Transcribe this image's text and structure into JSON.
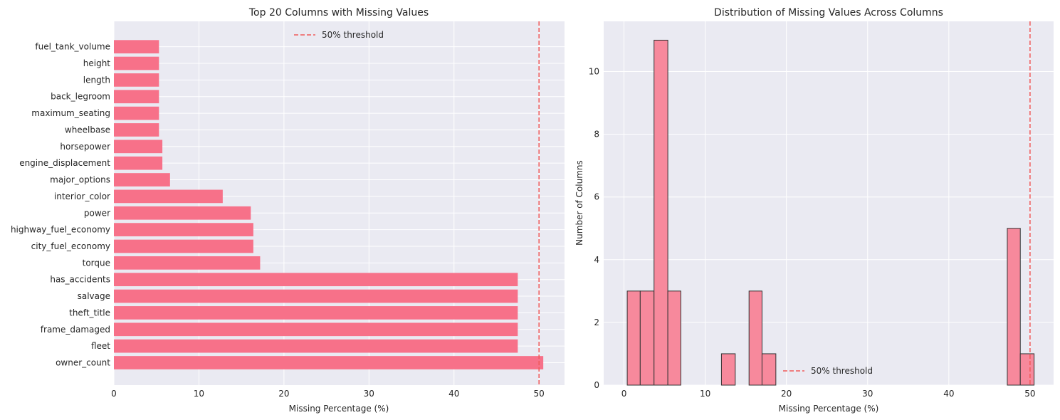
{
  "chart_data": [
    {
      "type": "bar",
      "orientation": "horizontal",
      "title": "Top 20 Columns with Missing Values",
      "xlabel": "Missing Percentage (%)",
      "ylabel": "",
      "xlim": [
        0,
        53
      ],
      "xticks": [
        "0",
        "10",
        "20",
        "30",
        "40",
        "50"
      ],
      "categories": [
        "owner_count",
        "fleet",
        "frame_damaged",
        "theft_title",
        "salvage",
        "has_accidents",
        "torque",
        "city_fuel_economy",
        "highway_fuel_economy",
        "power",
        "interior_color",
        "major_options",
        "engine_displacement",
        "horsepower",
        "wheelbase",
        "maximum_seating",
        "back_legroom",
        "length",
        "height",
        "fuel_tank_volume"
      ],
      "values": [
        50.5,
        47.5,
        47.5,
        47.5,
        47.5,
        47.5,
        17.2,
        16.4,
        16.4,
        16.1,
        12.8,
        6.6,
        5.7,
        5.7,
        5.3,
        5.3,
        5.3,
        5.3,
        5.3,
        5.3
      ],
      "threshold": {
        "value": 50,
        "label": "50% threshold"
      },
      "bar_color": "#f77189",
      "threshold_color": "#f05a5a",
      "grid": true,
      "legend": "upper center"
    },
    {
      "type": "histogram",
      "title": "Distribution of Missing Values Across Columns",
      "xlabel": "Missing Percentage (%)",
      "ylabel": "Number of Columns",
      "xlim": [
        -2.5,
        52.9
      ],
      "ylim": [
        0,
        11.6
      ],
      "xticks": [
        "0",
        "10",
        "20",
        "30",
        "40",
        "50"
      ],
      "yticks": [
        "0",
        "2",
        "4",
        "6",
        "8",
        "10"
      ],
      "bins": [
        {
          "start": 0.4,
          "end": 2.0,
          "count": 3
        },
        {
          "start": 2.0,
          "end": 3.7,
          "count": 3
        },
        {
          "start": 3.7,
          "end": 5.4,
          "count": 11
        },
        {
          "start": 5.4,
          "end": 7.0,
          "count": 3
        },
        {
          "start": 12.0,
          "end": 13.7,
          "count": 1
        },
        {
          "start": 15.4,
          "end": 17.0,
          "count": 3
        },
        {
          "start": 17.0,
          "end": 18.7,
          "count": 1
        },
        {
          "start": 47.2,
          "end": 48.8,
          "count": 5
        },
        {
          "start": 48.8,
          "end": 50.5,
          "count": 1
        }
      ],
      "threshold": {
        "value": 50,
        "label": "50% threshold"
      },
      "bar_color": "#f7899c",
      "threshold_color": "#f05a5a",
      "grid": true,
      "legend": "lower center"
    }
  ]
}
